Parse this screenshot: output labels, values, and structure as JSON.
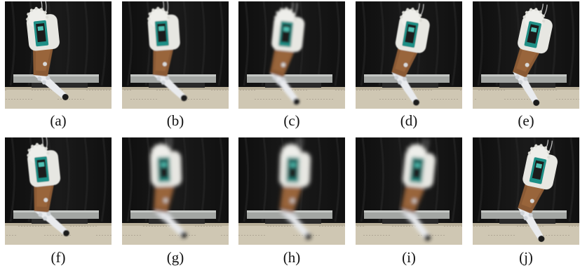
{
  "figure": {
    "panels": [
      {
        "id": "a",
        "caption": "(a)",
        "lean": -6,
        "blur": 0,
        "pose": 0.0
      },
      {
        "id": "b",
        "caption": "(b)",
        "lean": -4,
        "blur": 0.8,
        "pose": 0.08
      },
      {
        "id": "c",
        "caption": "(c)",
        "lean": 6,
        "blur": 1.6,
        "pose": 0.22
      },
      {
        "id": "d",
        "caption": "(d)",
        "lean": 10,
        "blur": 0.4,
        "pose": 0.38
      },
      {
        "id": "e",
        "caption": "(e)",
        "lean": 12,
        "blur": 0,
        "pose": 0.5
      },
      {
        "id": "f",
        "caption": "(f)",
        "lean": -6,
        "blur": 0.6,
        "pose": 0.02
      },
      {
        "id": "g",
        "caption": "(g)",
        "lean": -2,
        "blur": 2.6,
        "pose": 0.12
      },
      {
        "id": "h",
        "caption": "(h)",
        "lean": 2,
        "blur": 2.8,
        "pose": 0.4
      },
      {
        "id": "i",
        "caption": "(i)",
        "lean": 6,
        "blur": 2.6,
        "pose": 0.55
      },
      {
        "id": "j",
        "caption": "(j)",
        "lean": 12,
        "blur": 0.3,
        "pose": 0.62
      }
    ]
  }
}
